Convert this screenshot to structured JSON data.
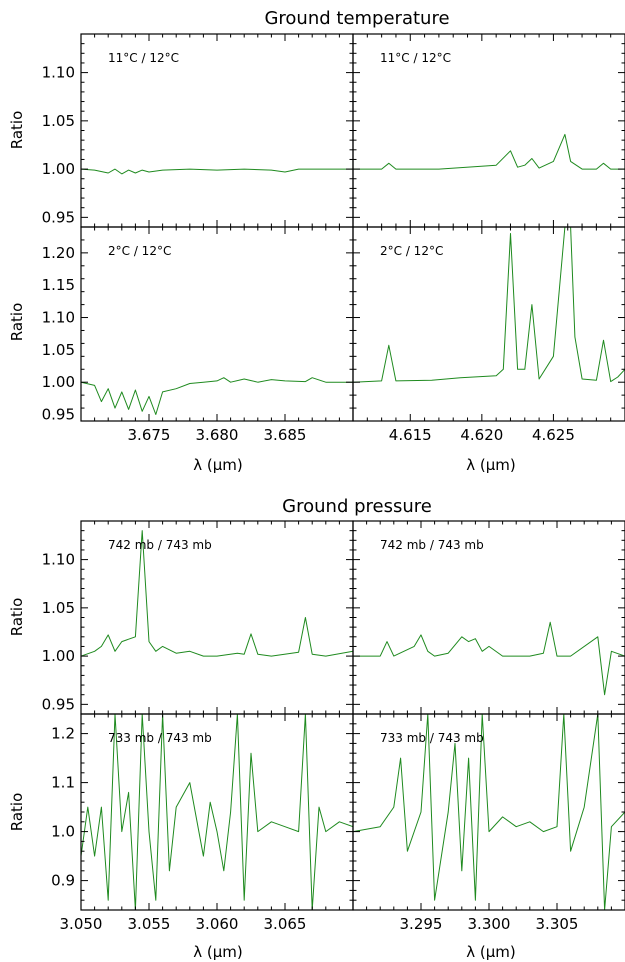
{
  "figure": {
    "sections": [
      {
        "title": "Ground temperature",
        "xlabel": "λ (μm)",
        "ylabel": "Ratio"
      },
      {
        "title": "Ground pressure",
        "xlabel": "λ (μm)",
        "ylabel": "Ratio"
      }
    ]
  },
  "chart_data": [
    {
      "type": "line",
      "panel": "temperature-left-top",
      "annotation": "11°C / 12°C",
      "xlim": [
        3.67,
        3.69
      ],
      "ylim": [
        0.94,
        1.14
      ],
      "yticks": [
        "0.95",
        "1.00",
        "1.05",
        "1.10"
      ],
      "x": [
        3.67,
        3.671,
        3.672,
        3.6725,
        3.673,
        3.6735,
        3.674,
        3.6745,
        3.675,
        3.676,
        3.678,
        3.68,
        3.682,
        3.684,
        3.685,
        3.686,
        3.688,
        3.69
      ],
      "y": [
        1.0,
        0.999,
        0.996,
        1.0,
        0.995,
        0.999,
        0.996,
        0.999,
        0.997,
        0.999,
        1.0,
        0.999,
        1.0,
        0.999,
        0.997,
        1.0,
        1.0,
        1.0
      ]
    },
    {
      "type": "line",
      "panel": "temperature-right-top",
      "annotation": "11°C / 12°C",
      "xlim": [
        4.611,
        4.63
      ],
      "ylim": [
        0.94,
        1.14
      ],
      "x": [
        4.611,
        4.613,
        4.6135,
        4.614,
        4.617,
        4.621,
        4.622,
        4.6225,
        4.623,
        4.6235,
        4.624,
        4.625,
        4.6258,
        4.6262,
        4.627,
        4.628,
        4.6285,
        4.629,
        4.63
      ],
      "y": [
        1.0,
        1.0,
        1.006,
        1.0,
        1.0,
        1.004,
        1.019,
        1.002,
        1.004,
        1.011,
        1.001,
        1.008,
        1.036,
        1.008,
        1.0,
        1.0,
        1.006,
        1.0,
        1.0
      ]
    },
    {
      "type": "line",
      "panel": "temperature-left-bottom",
      "annotation": "2°C / 12°C",
      "xlim": [
        3.67,
        3.69
      ],
      "ylim": [
        0.94,
        1.24
      ],
      "yticks": [
        "0.95",
        "1.00",
        "1.05",
        "1.10",
        "1.15",
        "1.20"
      ],
      "xticks": [
        "3.675",
        "3.680",
        "3.685"
      ],
      "x": [
        3.67,
        3.671,
        3.6715,
        3.672,
        3.6725,
        3.673,
        3.6735,
        3.674,
        3.6745,
        3.675,
        3.6755,
        3.676,
        3.677,
        3.678,
        3.679,
        3.68,
        3.6805,
        3.681,
        3.682,
        3.683,
        3.684,
        3.685,
        3.6865,
        3.687,
        3.688,
        3.69
      ],
      "y": [
        1.0,
        0.995,
        0.97,
        0.99,
        0.96,
        0.985,
        0.958,
        0.988,
        0.955,
        0.978,
        0.95,
        0.985,
        0.99,
        0.998,
        1.0,
        1.002,
        1.007,
        1.0,
        1.005,
        1.0,
        1.004,
        1.002,
        1.001,
        1.007,
        1.0,
        1.0
      ]
    },
    {
      "type": "line",
      "panel": "temperature-right-bottom",
      "annotation": "2°C / 12°C",
      "xlim": [
        4.611,
        4.63
      ],
      "ylim": [
        0.94,
        1.24
      ],
      "xticks": [
        "4.615",
        "4.620",
        "4.625"
      ],
      "x": [
        4.611,
        4.613,
        4.6135,
        4.614,
        4.6165,
        4.6185,
        4.621,
        4.6215,
        4.622,
        4.6225,
        4.623,
        4.6235,
        4.624,
        4.625,
        4.6258,
        4.6262,
        4.6265,
        4.627,
        4.628,
        4.6285,
        4.629,
        4.6295,
        4.63
      ],
      "y": [
        1.0,
        1.002,
        1.057,
        1.002,
        1.003,
        1.007,
        1.01,
        1.02,
        1.23,
        1.02,
        1.02,
        1.12,
        1.005,
        1.04,
        1.24,
        1.24,
        1.07,
        1.005,
        1.003,
        1.065,
        1.001,
        1.008,
        1.02
      ]
    },
    {
      "type": "line",
      "panel": "pressure-left-top",
      "annotation": "742 mb / 743 mb",
      "xlim": [
        3.05,
        3.07
      ],
      "ylim": [
        0.94,
        1.14
      ],
      "yticks": [
        "0.95",
        "1.00",
        "1.05",
        "1.10"
      ],
      "x": [
        3.05,
        3.051,
        3.0515,
        3.052,
        3.0525,
        3.053,
        3.054,
        3.0545,
        3.055,
        3.0555,
        3.056,
        3.057,
        3.058,
        3.059,
        3.06,
        3.0615,
        3.062,
        3.0625,
        3.063,
        3.064,
        3.066,
        3.0665,
        3.067,
        3.068,
        3.07
      ],
      "y": [
        1.0,
        1.005,
        1.01,
        1.022,
        1.005,
        1.015,
        1.02,
        1.13,
        1.015,
        1.005,
        1.01,
        1.003,
        1.005,
        1.0,
        1.0,
        1.003,
        1.002,
        1.023,
        1.002,
        1.0,
        1.004,
        1.04,
        1.002,
        1.0,
        1.005
      ]
    },
    {
      "type": "line",
      "panel": "pressure-right-top",
      "annotation": "742 mb / 743 mb",
      "xlim": [
        3.29,
        3.31
      ],
      "ylim": [
        0.94,
        1.14
      ],
      "x": [
        3.29,
        3.292,
        3.2925,
        3.293,
        3.2945,
        3.295,
        3.2955,
        3.296,
        3.297,
        3.298,
        3.2985,
        3.299,
        3.2995,
        3.3,
        3.301,
        3.303,
        3.304,
        3.3045,
        3.305,
        3.306,
        3.308,
        3.3085,
        3.309,
        3.31
      ],
      "y": [
        1.0,
        1.0,
        1.015,
        1.0,
        1.01,
        1.022,
        1.005,
        1.0,
        1.003,
        1.02,
        1.015,
        1.018,
        1.005,
        1.01,
        1.0,
        1.0,
        1.003,
        1.035,
        1.0,
        1.0,
        1.02,
        0.96,
        1.005,
        1.0
      ]
    },
    {
      "type": "line",
      "panel": "pressure-left-bottom",
      "annotation": "733 mb / 743 mb",
      "xlim": [
        3.05,
        3.07
      ],
      "ylim": [
        0.84,
        1.24
      ],
      "yticks": [
        "0.9",
        "1.0",
        "1.1",
        "1.2"
      ],
      "xticks": [
        "3.050",
        "3.055",
        "3.060",
        "3.065"
      ],
      "x": [
        3.05,
        3.0505,
        3.051,
        3.0515,
        3.052,
        3.0525,
        3.053,
        3.0535,
        3.054,
        3.0545,
        3.055,
        3.0555,
        3.056,
        3.0565,
        3.057,
        3.058,
        3.059,
        3.0595,
        3.06,
        3.0605,
        3.061,
        3.0615,
        3.062,
        3.0625,
        3.063,
        3.064,
        3.065,
        3.066,
        3.0665,
        3.067,
        3.0675,
        3.068,
        3.069,
        3.07
      ],
      "y": [
        0.95,
        1.05,
        0.95,
        1.05,
        0.86,
        1.24,
        1.0,
        1.08,
        0.84,
        1.24,
        1.0,
        0.86,
        1.24,
        0.92,
        1.05,
        1.1,
        0.95,
        1.06,
        1.0,
        0.92,
        1.04,
        1.24,
        0.86,
        1.16,
        1.0,
        1.02,
        1.01,
        1.0,
        1.24,
        0.84,
        1.05,
        1.0,
        1.02,
        1.01
      ]
    },
    {
      "type": "line",
      "panel": "pressure-right-bottom",
      "annotation": "733 mb / 743 mb",
      "xlim": [
        3.29,
        3.31
      ],
      "ylim": [
        0.84,
        1.24
      ],
      "xticks": [
        "3.295",
        "3.300",
        "3.305"
      ],
      "x": [
        3.29,
        3.292,
        3.293,
        3.2935,
        3.294,
        3.295,
        3.2955,
        3.296,
        3.297,
        3.2975,
        3.298,
        3.2985,
        3.299,
        3.2995,
        3.3,
        3.301,
        3.302,
        3.303,
        3.304,
        3.305,
        3.3055,
        3.306,
        3.307,
        3.308,
        3.3085,
        3.309,
        3.31
      ],
      "y": [
        1.0,
        1.01,
        1.05,
        1.15,
        0.96,
        1.04,
        1.24,
        0.86,
        1.04,
        1.18,
        0.92,
        1.15,
        0.86,
        1.24,
        1.0,
        1.03,
        1.01,
        1.02,
        1.0,
        1.01,
        1.24,
        0.96,
        1.05,
        1.24,
        0.84,
        1.01,
        1.04
      ]
    }
  ]
}
